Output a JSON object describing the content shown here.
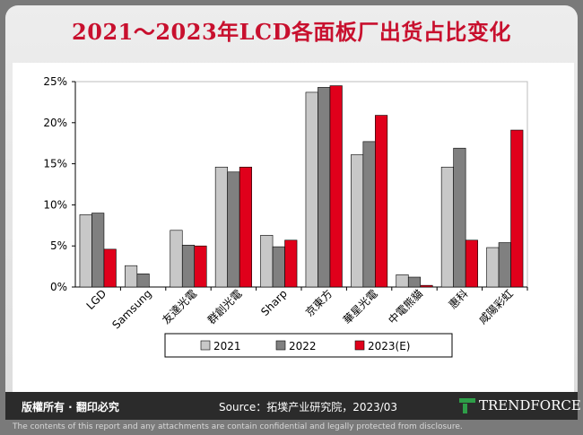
{
  "title": "2021～2023年LCD各面板厂出货占比变化",
  "footer": {
    "rights": "版權所有 · 翻印必究",
    "source": "Source：拓墣产业研究院，2023/03",
    "brand": "TRENDFORCE",
    "disclaimer": "The contents of this report and any attachments are contain confidential and legally protected from disclosure."
  },
  "colors": {
    "title": "#c8102e",
    "series": [
      "#c8c8c8",
      "#808080",
      "#e0001b"
    ]
  },
  "chart_data": {
    "type": "bar",
    "categories": [
      "LGD",
      "Samsung",
      "友達光電",
      "群創光電",
      "Sharp",
      "京東方",
      "華星光電",
      "中電熊貓",
      "惠科",
      "咸陽彩虹"
    ],
    "y_ticks": [
      "0%",
      "5%",
      "10%",
      "15%",
      "20%",
      "25%"
    ],
    "ylim": [
      0,
      25
    ],
    "series": [
      {
        "name": "2021",
        "values": [
          8.8,
          2.6,
          6.9,
          14.6,
          6.3,
          23.7,
          16.1,
          1.5,
          14.6,
          4.8
        ]
      },
      {
        "name": "2022",
        "values": [
          9.0,
          1.6,
          5.1,
          14.0,
          4.9,
          24.3,
          17.7,
          1.2,
          16.9,
          5.4
        ]
      },
      {
        "name": "2023(E)",
        "values": [
          4.6,
          0.0,
          5.0,
          14.6,
          5.7,
          24.5,
          20.9,
          0.2,
          5.7,
          19.1
        ]
      }
    ],
    "legend_position": "bottom",
    "grid": false
  }
}
